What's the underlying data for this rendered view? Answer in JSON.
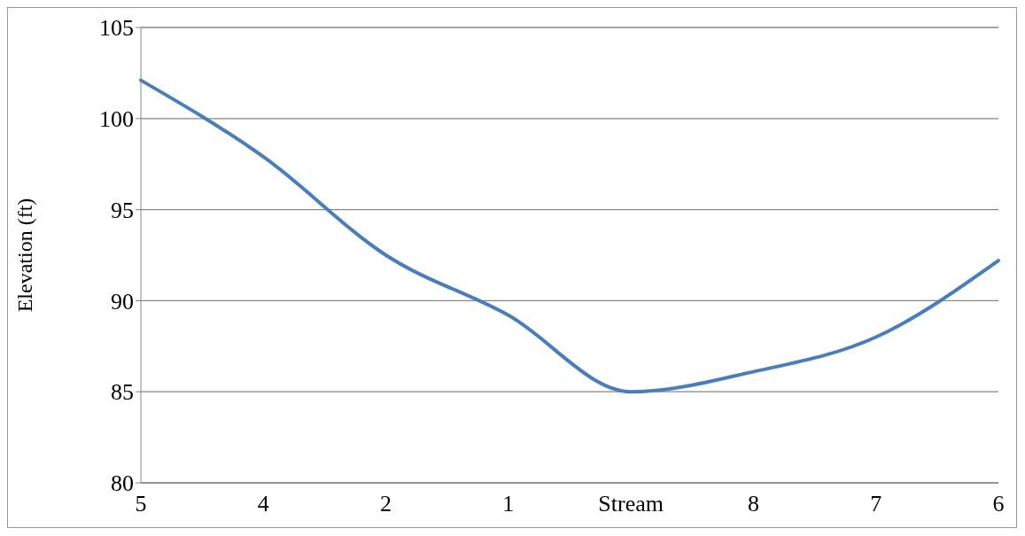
{
  "chart_data": {
    "type": "line",
    "ylabel": "Elevation (ft)",
    "categories": [
      "5",
      "4",
      "2",
      "1",
      "Stream",
      "8",
      "7",
      "6"
    ],
    "series": [
      {
        "color": "#4a7ebb",
        "values": [
          102.1,
          97.9,
          92.5,
          89.2,
          85.0,
          86.1,
          88.0,
          92.2
        ]
      }
    ],
    "ylim": [
      80,
      105
    ],
    "yticks": [
      80,
      85,
      90,
      95,
      100,
      105
    ],
    "grid": "y",
    "legend": false,
    "marker": "none",
    "line_style": "solid"
  }
}
